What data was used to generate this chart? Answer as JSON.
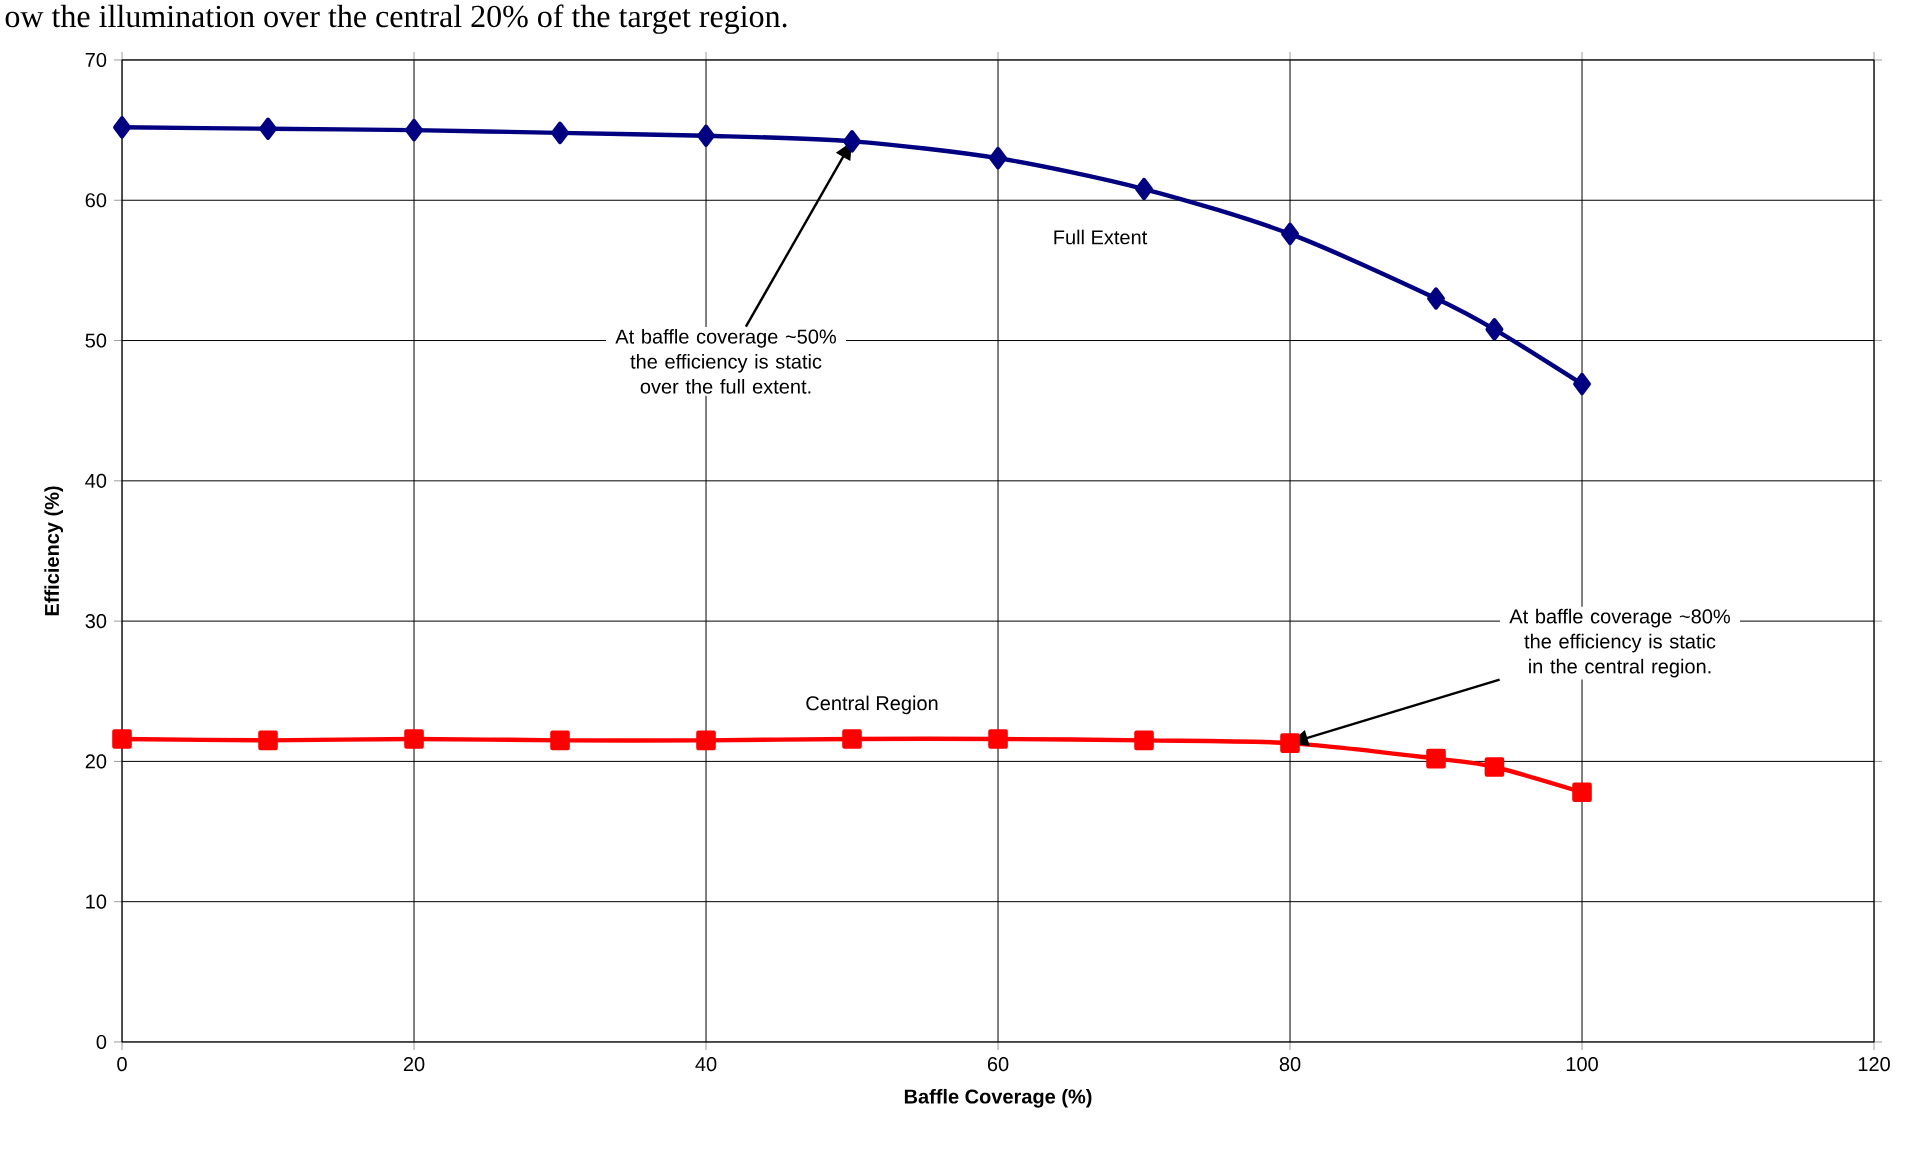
{
  "chart_data": {
    "type": "line",
    "xlabel": "Baffle Coverage (%)",
    "ylabel": "Efficiency (%)",
    "xlim": [
      0,
      120
    ],
    "ylim": [
      0,
      70
    ],
    "xticks": [
      0,
      20,
      40,
      60,
      80,
      100,
      120
    ],
    "yticks": [
      0,
      10,
      20,
      30,
      40,
      50,
      60,
      70
    ],
    "grid": true,
    "legend": false,
    "line_style": "solid",
    "series": [
      {
        "name": "Full Extent",
        "color": "#000080",
        "marker": "diamond",
        "x": [
          0,
          10,
          20,
          30,
          40,
          50,
          60,
          70,
          80,
          90,
          94,
          100
        ],
        "values": [
          65.2,
          65.1,
          65.0,
          64.8,
          64.6,
          64.2,
          63.0,
          60.8,
          57.6,
          53.0,
          50.8,
          46.9
        ]
      },
      {
        "name": "Central Region",
        "color": "#ff0000",
        "marker": "square",
        "x": [
          0,
          10,
          20,
          30,
          40,
          50,
          60,
          70,
          80,
          90,
          94,
          100
        ],
        "values": [
          21.6,
          21.5,
          21.6,
          21.5,
          21.5,
          21.6,
          21.6,
          21.5,
          21.3,
          20.2,
          19.6,
          17.8
        ]
      }
    ],
    "annotations": [
      "ow the illumination over the central 20% of the target region.",
      {
        "text": "At baffle coverage ~50% the efficiency is static over the full extent.",
        "x": 50,
        "y": 64.2
      },
      {
        "text": "At baffle coverage ~80% the efficiency is static in the central region.",
        "x": 80,
        "y": 21.3
      }
    ]
  }
}
